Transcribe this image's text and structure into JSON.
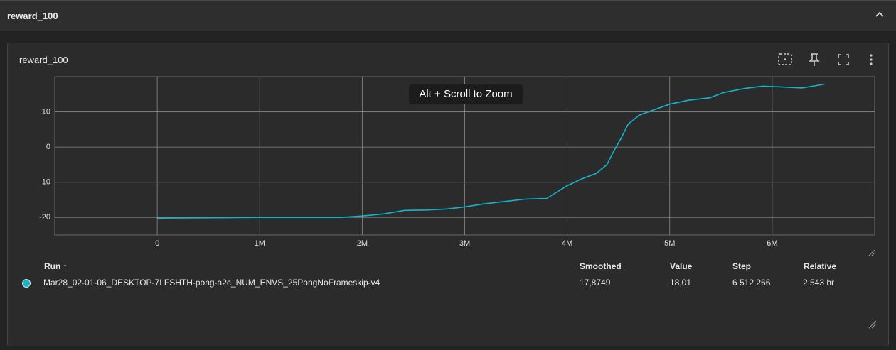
{
  "header": {
    "title": "reward_100"
  },
  "card": {
    "title": "reward_100",
    "zoom_hint": "Alt + Scroll to Zoom"
  },
  "chart_data": {
    "type": "line",
    "xlim": [
      -1000000,
      7000000
    ],
    "xticks": [
      0,
      {
        "value": 1000000,
        "label": "1M"
      },
      {
        "value": 2000000,
        "label": "2M"
      },
      {
        "value": 3000000,
        "label": "3M"
      },
      {
        "value": 4000000,
        "label": "4M"
      },
      {
        "value": 5000000,
        "label": "5M"
      },
      {
        "value": 6000000,
        "label": "6M"
      }
    ],
    "ylim": [
      -25,
      20
    ],
    "yticks": [
      -20,
      -10,
      0,
      10
    ],
    "grid": true,
    "x": [
      0,
      547000,
      1000000,
      1516000,
      1792000,
      2000000,
      2208000,
      2415000,
      2623000,
      2830000,
      3000000,
      3173000,
      3381000,
      3588000,
      3799000,
      4000000,
      4145000,
      4284000,
      4388000,
      4457000,
      4526000,
      4595000,
      4699000,
      4837000,
      5000000,
      5183000,
      5391000,
      5529000,
      5737000,
      5910000,
      6083000,
      6291000,
      6512266
    ],
    "series": [
      {
        "name": "Mar28_02-01-06_DESKTOP-7LFSHTH-pong-a2c_NUM_ENVS_25PongNoFrameskip-v4",
        "color": "#12b5cb",
        "values": [
          -20.2,
          -20.1,
          -20.0,
          -20.0,
          -20.0,
          -19.6,
          -19.0,
          -18.0,
          -17.9,
          -17.6,
          -17.0,
          -16.2,
          -15.5,
          -14.8,
          -14.6,
          -11.0,
          -9.0,
          -7.5,
          -5.0,
          -1.0,
          2.5,
          6.5,
          9.0,
          10.5,
          12.2,
          13.3,
          14.0,
          15.5,
          16.7,
          17.3,
          17.1,
          16.8,
          17.87
        ]
      }
    ]
  },
  "table": {
    "headers": [
      "Run",
      "Smoothed",
      "Value",
      "Step",
      "Relative"
    ],
    "sort_indicator": "↑",
    "rows": [
      [
        "Mar28_02-01-06_DESKTOP-7LFSHTH-pong-a2c_NUM_ENVS_25PongNoFrameskip-v4",
        "17,8749",
        "18,01",
        "6 512 266",
        "2.543 hr"
      ]
    ]
  }
}
